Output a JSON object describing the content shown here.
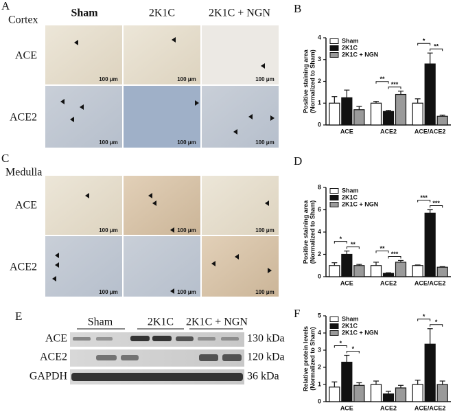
{
  "panel_a": {
    "label": "A",
    "region": "Cortex",
    "columns": [
      "Sham",
      "2K1C",
      "2K1C + NGN"
    ],
    "rows": [
      "ACE",
      "ACE2"
    ],
    "scale_bar": "100 μm"
  },
  "panel_c": {
    "label": "C",
    "region": "Medulla",
    "rows": [
      "ACE",
      "ACE2"
    ],
    "scale_bar": "100 μm"
  },
  "panel_e": {
    "label": "E",
    "groups": [
      "Sham",
      "2K1C",
      "2K1C + NGN"
    ],
    "rows": [
      "ACE",
      "ACE2",
      "GAPDH"
    ],
    "sizes": [
      "130 kDa",
      "120 kDa",
      "36 kDa"
    ]
  },
  "chart_data": [
    {
      "type": "bar",
      "panel": "B",
      "ylabel": [
        "Positive staining area",
        "(Normalized to Sham)"
      ],
      "categories": [
        "ACE",
        "ACE2",
        "ACE/ACE2"
      ],
      "series": [
        {
          "name": "Sham",
          "color": "#ffffff",
          "values": [
            1.0,
            1.0,
            1.0
          ],
          "errors": [
            0.3,
            0.08,
            0.2
          ]
        },
        {
          "name": "2K1C",
          "color": "#111111",
          "values": [
            1.25,
            0.62,
            2.8
          ],
          "errors": [
            0.35,
            0.05,
            0.5
          ]
        },
        {
          "name": "2K1C + NGN",
          "color": "#9a9a9a",
          "values": [
            0.7,
            1.4,
            0.4
          ],
          "errors": [
            0.15,
            0.15,
            0.05
          ]
        }
      ],
      "ylim": [
        0,
        4
      ],
      "yticks": [
        0,
        1,
        2,
        3,
        4
      ],
      "annotations": [
        {
          "label": "**",
          "category": 1,
          "series": [
            0,
            1
          ]
        },
        {
          "label": "***",
          "category": 1,
          "series": [
            1,
            2
          ]
        },
        {
          "label": "*",
          "category": 2,
          "series": [
            0,
            1
          ]
        },
        {
          "label": "**",
          "category": 2,
          "series": [
            1,
            2
          ]
        }
      ]
    },
    {
      "type": "bar",
      "panel": "D",
      "ylabel": [
        "Positive staining area",
        "(Normalized to Sham)"
      ],
      "categories": [
        "ACE",
        "ACE2",
        "ACE/ACE2"
      ],
      "series": [
        {
          "name": "Sham",
          "color": "#ffffff",
          "values": [
            1.0,
            1.0,
            1.0
          ],
          "errors": [
            0.25,
            0.3,
            0.05
          ]
        },
        {
          "name": "2K1C",
          "color": "#111111",
          "values": [
            2.0,
            0.3,
            5.7
          ],
          "errors": [
            0.3,
            0.05,
            0.3
          ]
        },
        {
          "name": "2K1C + NGN",
          "color": "#9a9a9a",
          "values": [
            1.0,
            1.3,
            0.85
          ],
          "errors": [
            0.1,
            0.15,
            0.05
          ]
        }
      ],
      "ylim": [
        0,
        8
      ],
      "yticks": [
        0,
        2,
        4,
        6,
        8
      ],
      "annotations": [
        {
          "label": "*",
          "category": 0,
          "series": [
            0,
            1
          ]
        },
        {
          "label": "**",
          "category": 0,
          "series": [
            1,
            2
          ]
        },
        {
          "label": "**",
          "category": 1,
          "series": [
            0,
            1
          ]
        },
        {
          "label": "***",
          "category": 1,
          "series": [
            1,
            2
          ]
        },
        {
          "label": "***",
          "category": 2,
          "series": [
            0,
            1
          ]
        },
        {
          "label": "***",
          "category": 2,
          "series": [
            1,
            2
          ]
        }
      ]
    },
    {
      "type": "bar",
      "panel": "F",
      "ylabel": [
        "Relative protein levels",
        "(Normalized to Sham)"
      ],
      "categories": [
        "ACE",
        "ACE2",
        "ACE/ACE2"
      ],
      "series": [
        {
          "name": "Sham",
          "color": "#ffffff",
          "values": [
            0.85,
            1.0,
            1.0
          ],
          "errors": [
            0.3,
            0.2,
            0.25
          ]
        },
        {
          "name": "2K1C",
          "color": "#111111",
          "values": [
            2.3,
            0.45,
            3.35
          ],
          "errors": [
            0.4,
            0.15,
            0.9
          ]
        },
        {
          "name": "2K1C + NGN",
          "color": "#9a9a9a",
          "values": [
            0.95,
            0.8,
            1.0
          ],
          "errors": [
            0.15,
            0.15,
            0.2
          ]
        }
      ],
      "ylim": [
        0,
        5
      ],
      "yticks": [
        0,
        1,
        2,
        3,
        4,
        5
      ],
      "annotations": [
        {
          "label": "*",
          "category": 0,
          "series": [
            0,
            1
          ]
        },
        {
          "label": "*",
          "category": 0,
          "series": [
            1,
            2
          ]
        },
        {
          "label": "*",
          "category": 2,
          "series": [
            0,
            1
          ]
        },
        {
          "label": "*",
          "category": 2,
          "series": [
            1,
            2
          ]
        }
      ]
    }
  ]
}
